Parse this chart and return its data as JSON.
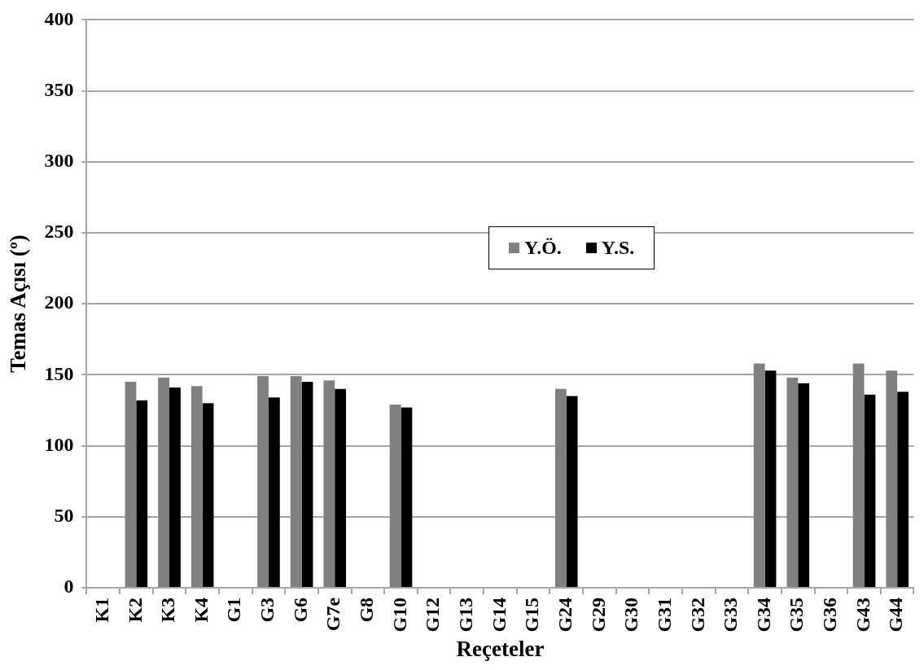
{
  "chart_data": {
    "type": "bar",
    "xlabel": "Reçeteler",
    "ylabel": "Temas Açısı (º)",
    "categories": [
      "K1",
      "K2",
      "K3",
      "K4",
      "G1",
      "G3",
      "G6",
      "G7e",
      "G8",
      "G10",
      "G12",
      "G13",
      "G14",
      "G15",
      "G24",
      "G29",
      "G30",
      "G31",
      "G32",
      "G33",
      "G34",
      "G35",
      "G36",
      "G43",
      "G44"
    ],
    "series": [
      {
        "name": "Y.Ö.",
        "color": "#808080",
        "values": [
          null,
          145,
          148,
          142,
          null,
          149,
          149,
          146,
          null,
          129,
          null,
          null,
          null,
          null,
          140,
          null,
          null,
          null,
          null,
          null,
          158,
          148,
          null,
          158,
          153
        ]
      },
      {
        "name": "Y.S.",
        "color": "#000000",
        "values": [
          null,
          132,
          141,
          130,
          null,
          134,
          145,
          140,
          null,
          127,
          null,
          null,
          null,
          null,
          135,
          null,
          null,
          null,
          null,
          null,
          153,
          144,
          null,
          136,
          138
        ]
      }
    ],
    "ylim": [
      0,
      400
    ],
    "yticks": [
      0,
      50,
      100,
      150,
      200,
      250,
      300,
      350,
      400
    ],
    "grid": "y",
    "legend": "center"
  }
}
